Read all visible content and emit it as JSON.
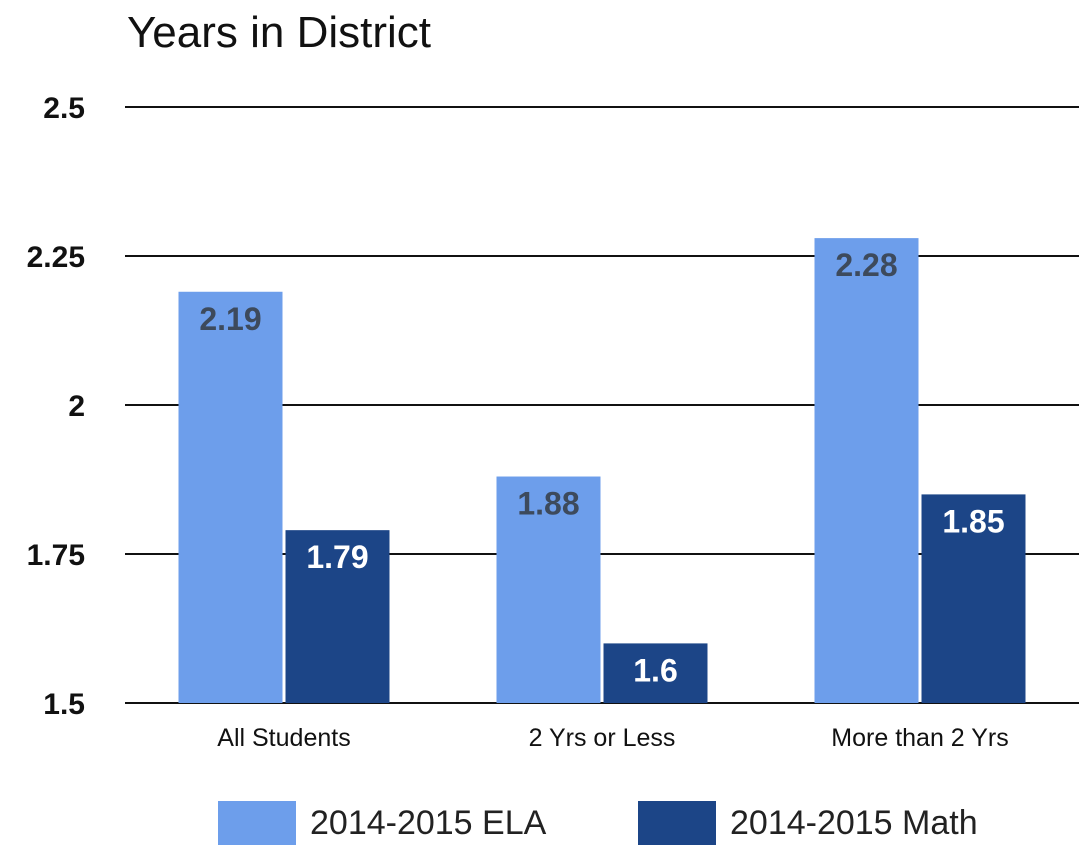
{
  "chart_data": {
    "type": "bar",
    "title": "Years in District",
    "categories": [
      "All Students",
      "2 Yrs or Less",
      "More than 2 Yrs"
    ],
    "series": [
      {
        "name": "2014-2015 ELA",
        "values": [
          2.19,
          1.88,
          2.28
        ],
        "labels": [
          "2.19",
          "1.88",
          "2.28"
        ],
        "color": "#6d9eeb",
        "label_color": "#3d4a5c"
      },
      {
        "name": "2014-2015 Math",
        "values": [
          1.79,
          1.6,
          1.85
        ],
        "labels": [
          "1.79",
          "1.6",
          "1.85"
        ],
        "color": "#1c4587",
        "label_color": "#ffffff"
      }
    ],
    "yticks": [
      "1.5",
      "1.75",
      "2",
      "2.25",
      "2.5"
    ],
    "ylim": [
      1.5,
      2.5
    ],
    "xlabel": "",
    "ylabel": "",
    "grid": true,
    "legend_position": "bottom"
  }
}
